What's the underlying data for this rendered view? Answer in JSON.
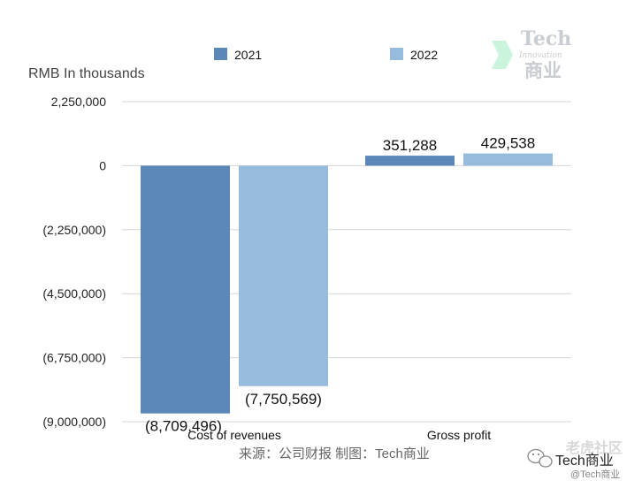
{
  "chart_data": {
    "type": "bar",
    "unit_label": "RMB In thousands",
    "categories": [
      "Cost of revenues",
      "Gross profit"
    ],
    "series": [
      {
        "name": "2021",
        "values": [
          -8709496,
          351288
        ],
        "labels": [
          "(8,709,496)",
          "351,288"
        ],
        "color": "#5b87b9"
      },
      {
        "name": "2022",
        "values": [
          -7750569,
          429538
        ],
        "labels": [
          "(7,750,569)",
          "429,538"
        ],
        "color": "#97bbdc"
      }
    ],
    "yticks": [
      {
        "value": 2250000,
        "label": "2,250,000"
      },
      {
        "value": 0,
        "label": "0"
      },
      {
        "value": -2250000,
        "label": "(2,250,000)"
      },
      {
        "value": -4500000,
        "label": "(4,500,000)"
      },
      {
        "value": -6750000,
        "label": "(6,750,000)"
      },
      {
        "value": -9000000,
        "label": "(9,000,000)"
      }
    ],
    "ylim": [
      -9000000,
      2250000
    ],
    "grid": true,
    "legend_position": "top",
    "source_note": "来源：公司财报 制图：Tech商业"
  },
  "watermark": {
    "title": "Tech",
    "subtitle": "Innovation",
    "cn": "商业",
    "accent_color": "#b8f0cf"
  },
  "wechat_badge": {
    "name": "Tech商业",
    "handle": "@Tech商业",
    "community": "老虎社区"
  }
}
